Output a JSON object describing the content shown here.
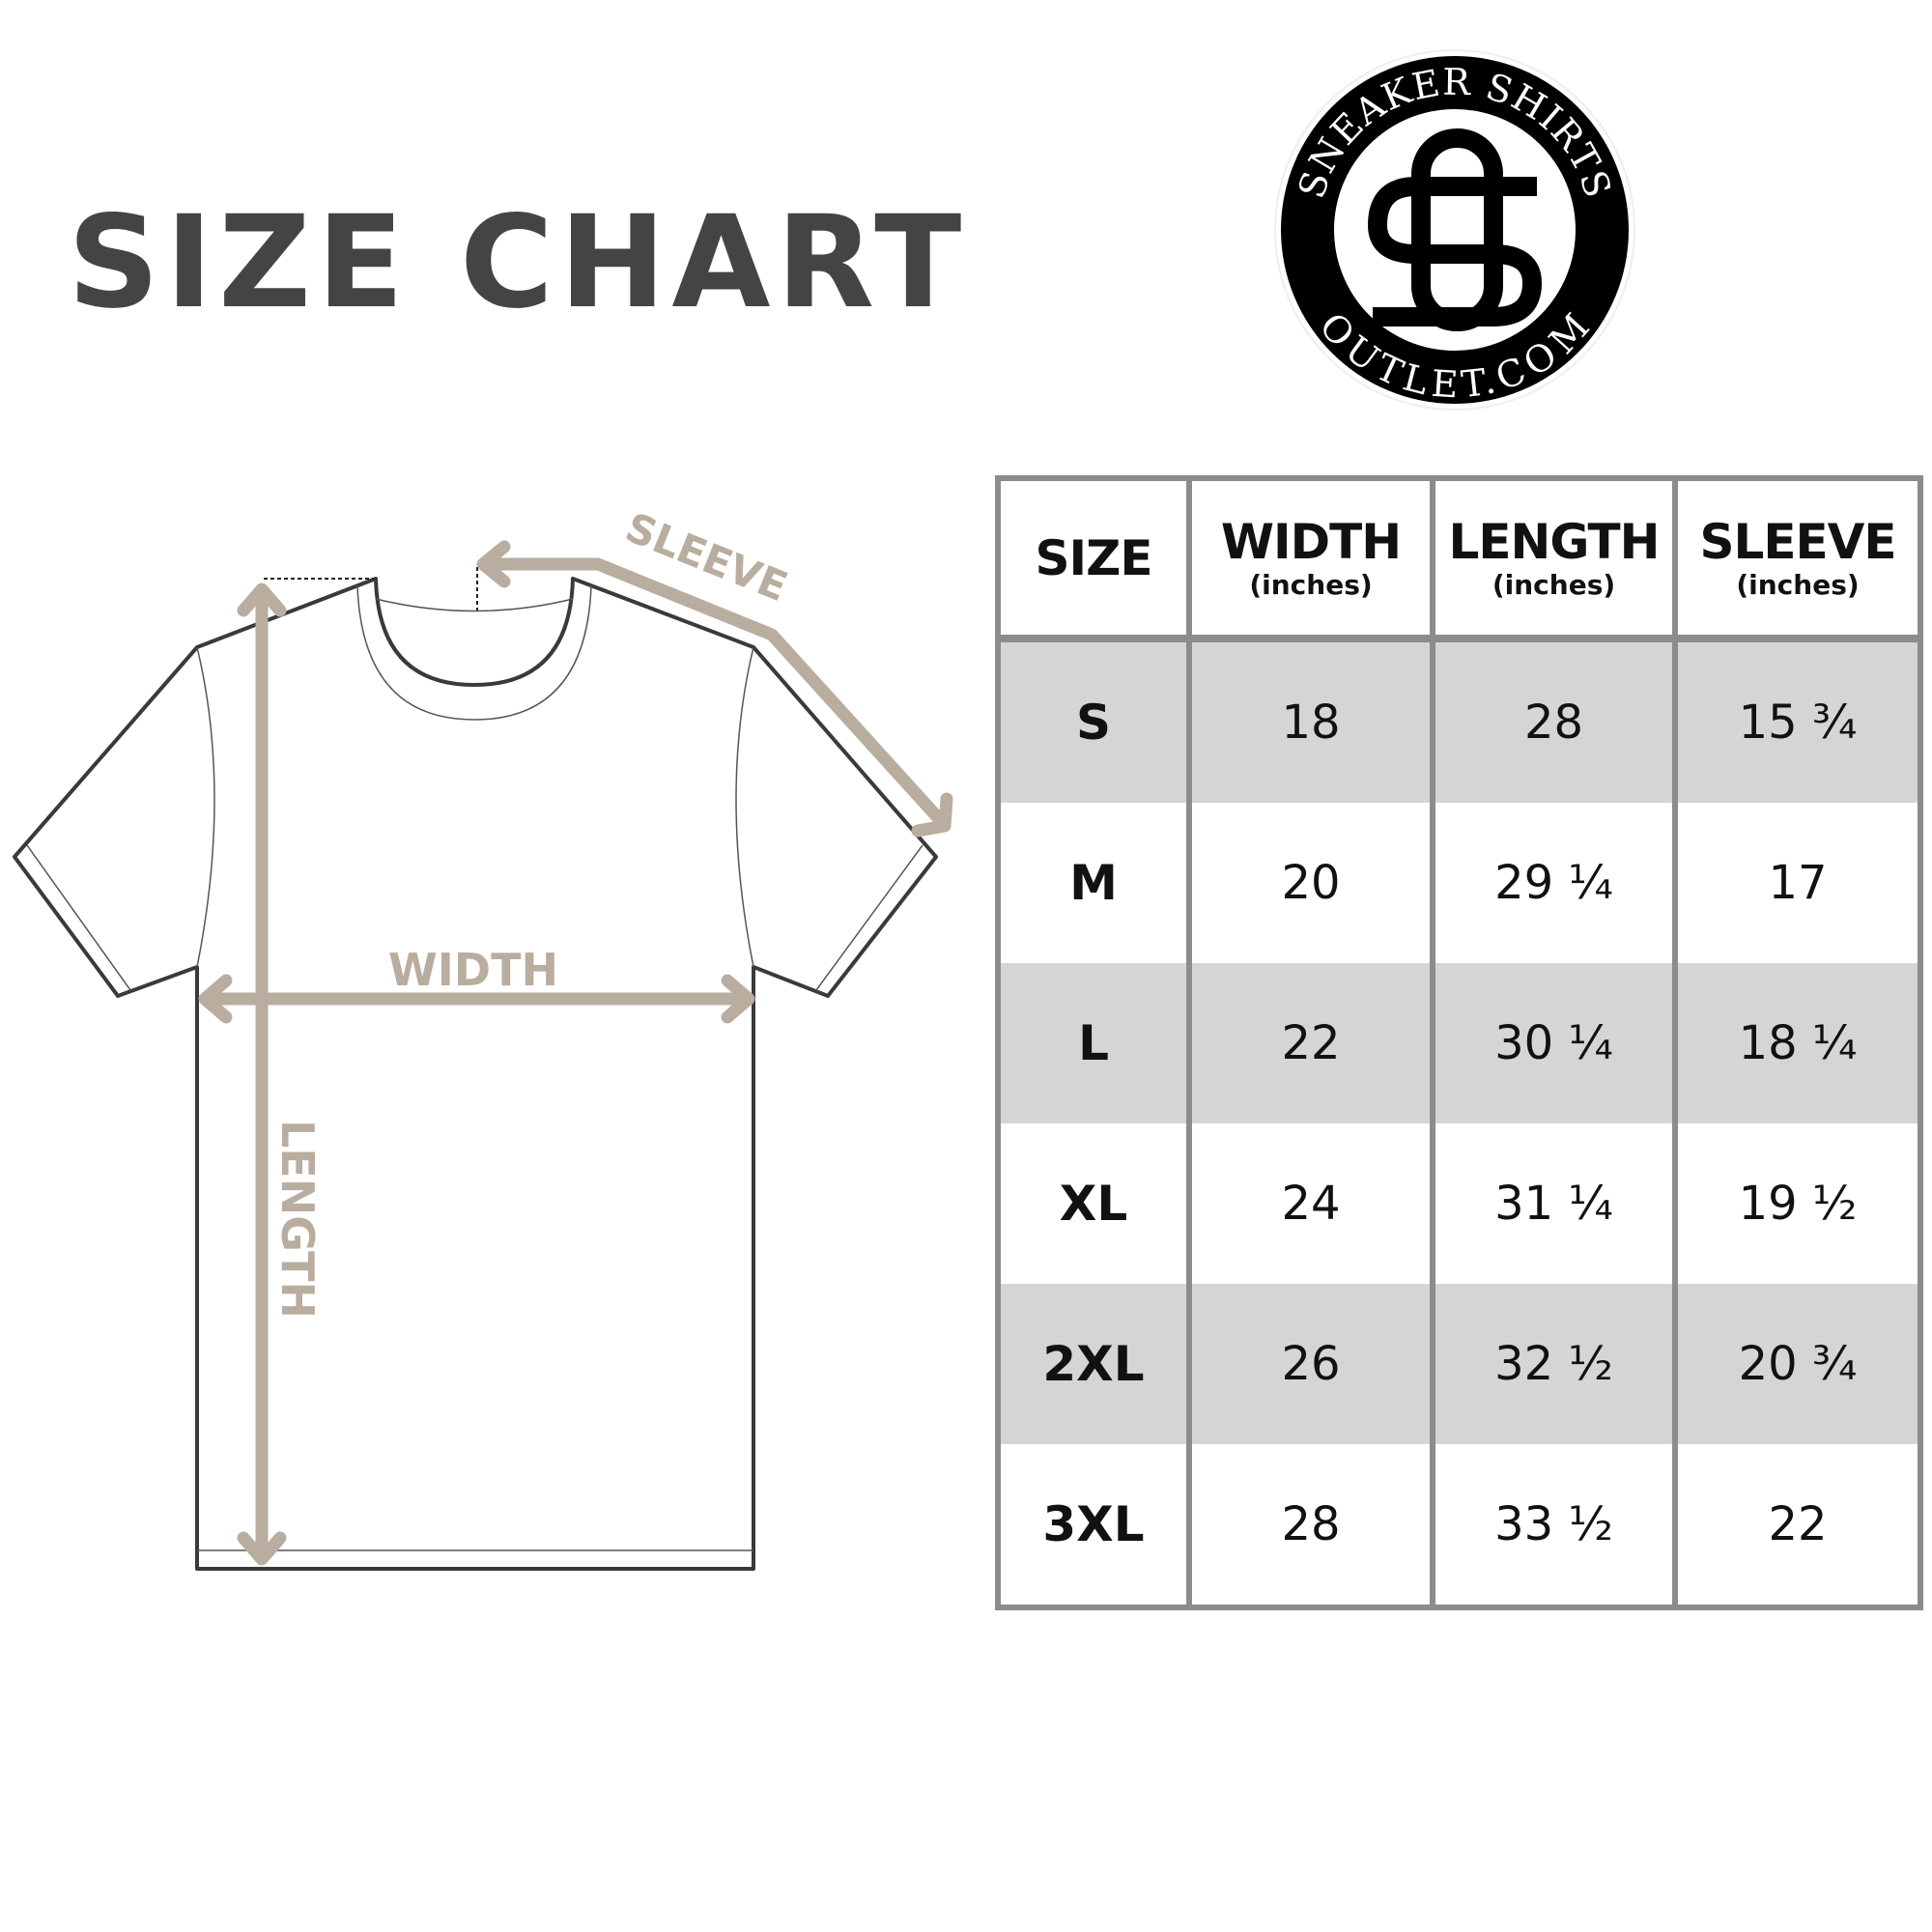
{
  "title": "SIZE CHART",
  "logo": {
    "top_text": "SNEAKER SHIRTS",
    "bottom_text": "OUTLET.COM",
    "monogram": "SO"
  },
  "diagram": {
    "sleeve_label": "SLEEVE",
    "width_label": "WIDTH",
    "length_label": "LENGTH",
    "arrow_color": "#b9ad9f"
  },
  "table": {
    "headers": [
      {
        "label": "SIZE",
        "unit": ""
      },
      {
        "label": "WIDTH",
        "unit": "(inches)"
      },
      {
        "label": "LENGTH",
        "unit": "(inches)"
      },
      {
        "label": "SLEEVE",
        "unit": "(inches)"
      }
    ],
    "rows": [
      [
        "S",
        "18",
        "28",
        "15 ¾"
      ],
      [
        "M",
        "20",
        "29 ¼",
        "17"
      ],
      [
        "L",
        "22",
        "30 ¼",
        "18 ¼"
      ],
      [
        "XL",
        "24",
        "31 ¼",
        "19 ½"
      ],
      [
        "2XL",
        "26",
        "32 ½",
        "20 ¾"
      ],
      [
        "3XL",
        "28",
        "33 ½",
        "22"
      ]
    ],
    "shade_color": "#d5d5d5",
    "border_color": "#8c8c8c"
  }
}
